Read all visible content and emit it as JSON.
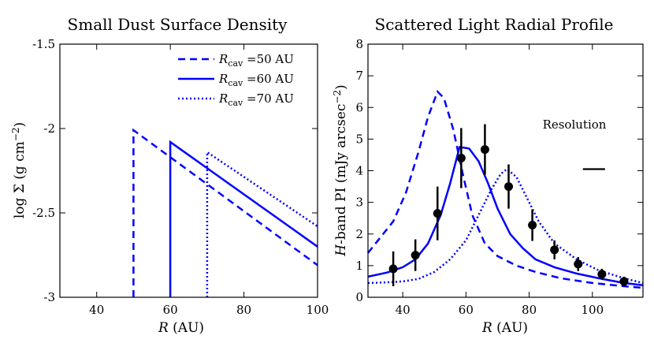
{
  "colors": {
    "line": "#0000ff",
    "points": "#000000"
  },
  "chart_data": [
    {
      "type": "line",
      "title": "Small Dust Surface Density",
      "xlabel": "R (AU)",
      "ylabel": "log Σ (g cm⁻²)",
      "xlim": [
        30,
        100
      ],
      "ylim": [
        -3,
        -1.5
      ],
      "yticks": [
        -3,
        -2.5,
        -2,
        -1.5
      ],
      "xticks": [
        40,
        60,
        80,
        100
      ],
      "ytick_labels": [
        "-3",
        "-2.5",
        "-2",
        "-1.5"
      ],
      "xtick_labels": [
        "40",
        "60",
        "80",
        "100"
      ],
      "legend_position": "top-right",
      "series": [
        {
          "name": "R_cav =50 AU",
          "legend_main": "R",
          "legend_sub": "cav",
          "legend_rest": " =50 AU",
          "style": "dashed",
          "x": [
            50,
            50,
            100
          ],
          "y": [
            -3.0,
            -2.01,
            -2.81
          ]
        },
        {
          "name": "R_cav =60 AU",
          "legend_main": "R",
          "legend_sub": "cav",
          "legend_rest": " =60 AU",
          "style": "solid",
          "x": [
            60,
            60,
            100
          ],
          "y": [
            -3.0,
            -2.08,
            -2.7
          ]
        },
        {
          "name": "R_cav =70 AU",
          "legend_main": "R",
          "legend_sub": "cav",
          "legend_rest": " =70 AU",
          "style": "dotted",
          "x": [
            70,
            70,
            100
          ],
          "y": [
            -3.0,
            -2.14,
            -2.58
          ]
        }
      ]
    },
    {
      "type": "line",
      "title": "Scattered Light Radial Profile",
      "xlabel": "R (AU)",
      "ylabel": "H-band PI (mJy arcsec⁻²)",
      "xlim": [
        29,
        116
      ],
      "ylim": [
        0,
        8
      ],
      "yticks": [
        0,
        1,
        2,
        3,
        4,
        5,
        6,
        7,
        8
      ],
      "xticks": [
        40,
        60,
        80,
        100
      ],
      "ytick_labels": [
        "0",
        "1",
        "2",
        "3",
        "4",
        "5",
        "6",
        "7",
        "8"
      ],
      "xtick_labels": [
        "40",
        "60",
        "80",
        "100"
      ],
      "annotation": "Resolution",
      "resolution_bar": [
        97,
        104,
        4.05
      ],
      "series": [
        {
          "name": "R_cav =50 AU",
          "style": "dashed",
          "x": [
            29,
            33,
            37,
            41,
            45,
            48,
            51,
            53,
            56,
            59,
            62,
            66,
            70,
            76,
            82,
            90,
            100,
            110,
            116
          ],
          "y": [
            1.4,
            1.9,
            2.4,
            3.3,
            4.6,
            5.7,
            6.5,
            6.3,
            5.3,
            3.9,
            2.6,
            1.7,
            1.3,
            1.0,
            0.8,
            0.6,
            0.45,
            0.35,
            0.3
          ]
        },
        {
          "name": "R_cav =60 AU",
          "style": "solid",
          "x": [
            29,
            35,
            40,
            44,
            48,
            52,
            55,
            58,
            61,
            64,
            67,
            70,
            74,
            78,
            82,
            88,
            95,
            102,
            110,
            116
          ],
          "y": [
            0.65,
            0.78,
            0.95,
            1.2,
            1.7,
            2.6,
            3.6,
            4.75,
            4.7,
            4.3,
            3.6,
            2.8,
            2.0,
            1.55,
            1.2,
            0.95,
            0.75,
            0.6,
            0.45,
            0.38
          ]
        },
        {
          "name": "R_cav =70 AU",
          "style": "dotted",
          "x": [
            29,
            35,
            40,
            45,
            50,
            55,
            60,
            64,
            68,
            71,
            73,
            76,
            79,
            83,
            88,
            95,
            102,
            110,
            116
          ],
          "y": [
            0.45,
            0.47,
            0.5,
            0.58,
            0.8,
            1.2,
            1.8,
            2.6,
            3.4,
            3.9,
            4.05,
            3.8,
            3.2,
            2.4,
            1.7,
            1.2,
            0.85,
            0.6,
            0.45
          ]
        }
      ],
      "observations": {
        "x": [
          37,
          44,
          51,
          58.5,
          66,
          73.5,
          81,
          88,
          95.5,
          103,
          110
        ],
        "y": [
          0.9,
          1.33,
          2.65,
          4.4,
          4.67,
          3.5,
          2.28,
          1.5,
          1.05,
          0.73,
          0.5
        ],
        "err": [
          0.55,
          0.5,
          0.85,
          0.95,
          0.8,
          0.7,
          0.5,
          0.3,
          0.22,
          0.17,
          0.15
        ]
      }
    }
  ]
}
